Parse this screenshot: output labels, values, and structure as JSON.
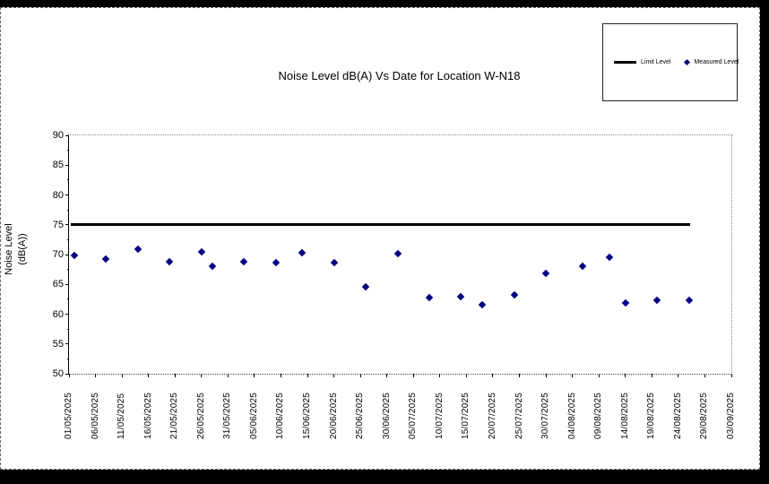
{
  "chart": {
    "title": "Noise Level dB(A) Vs Date for Location W-N18",
    "y_axis_title_line1": "Noise Level",
    "y_axis_title_line2": "(dB(A))",
    "legend": {
      "limit_label": "Limit Level",
      "measured_label": "Measured Level"
    },
    "colors": {
      "marker": "#000080",
      "limit_line": "#000000",
      "chart_background": "#ffffff",
      "outer_background": "#000000"
    }
  },
  "chart_data": {
    "type": "scatter",
    "title": "Noise Level dB(A) Vs Date for Location W-N18",
    "xlabel": "",
    "ylabel": "Noise Level (dB(A))",
    "ylim": [
      50,
      90
    ],
    "y_tick_step": 5,
    "y_ticks": [
      50,
      55,
      60,
      65,
      70,
      75,
      80,
      85,
      90
    ],
    "x_range_days": 125,
    "x_tick_interval_days": 5,
    "x_tick_labels": [
      "01/05/2025",
      "06/05/2025",
      "11/05/2025",
      "16/05/2025",
      "21/05/2025",
      "26/05/2025",
      "31/05/2025",
      "05/06/2025",
      "10/06/2025",
      "15/06/2025",
      "20/06/2025",
      "25/06/2025",
      "30/06/2025",
      "05/07/2025",
      "10/07/2025",
      "15/07/2025",
      "20/07/2025",
      "25/07/2025",
      "30/07/2025",
      "04/08/2025",
      "09/08/2025",
      "14/08/2025",
      "19/08/2025",
      "24/08/2025",
      "29/08/2025",
      "03/09/2025"
    ],
    "legend_position": "top-right",
    "grid": false,
    "series": [
      {
        "name": "Limit Level",
        "type": "line",
        "color": "#000000",
        "value": 75,
        "start_day": 0.3,
        "end_day": 117.3
      },
      {
        "name": "Measured Level",
        "type": "scatter",
        "marker": "diamond",
        "color": "#000080",
        "points": [
          {
            "date": "02/05/2025",
            "day": 1,
            "value": 69.8
          },
          {
            "date": "08/05/2025",
            "day": 7,
            "value": 69.2
          },
          {
            "date": "14/05/2025",
            "day": 13,
            "value": 70.9
          },
          {
            "date": "20/05/2025",
            "day": 19,
            "value": 68.8
          },
          {
            "date": "26/05/2025",
            "day": 25,
            "value": 70.5
          },
          {
            "date": "28/05/2025",
            "day": 27,
            "value": 68.1
          },
          {
            "date": "03/06/2025",
            "day": 33,
            "value": 68.8
          },
          {
            "date": "09/06/2025",
            "day": 39,
            "value": 68.7
          },
          {
            "date": "14/06/2025",
            "day": 44,
            "value": 70.3
          },
          {
            "date": "20/06/2025",
            "day": 50,
            "value": 68.7
          },
          {
            "date": "26/06/2025",
            "day": 56,
            "value": 64.6
          },
          {
            "date": "02/07/2025",
            "day": 62,
            "value": 70.2
          },
          {
            "date": "08/07/2025",
            "day": 68,
            "value": 62.8
          },
          {
            "date": "14/07/2025",
            "day": 74,
            "value": 63.0
          },
          {
            "date": "18/07/2025",
            "day": 78,
            "value": 61.6
          },
          {
            "date": "24/07/2025",
            "day": 84,
            "value": 63.3
          },
          {
            "date": "30/07/2025",
            "day": 90,
            "value": 66.8
          },
          {
            "date": "06/08/2025",
            "day": 97,
            "value": 68.1
          },
          {
            "date": "11/08/2025",
            "day": 102,
            "value": 69.5
          },
          {
            "date": "14/08/2025",
            "day": 105,
            "value": 61.9
          },
          {
            "date": "20/08/2025",
            "day": 111,
            "value": 62.3
          },
          {
            "date": "26/08/2025",
            "day": 117,
            "value": 62.4
          }
        ]
      }
    ]
  }
}
